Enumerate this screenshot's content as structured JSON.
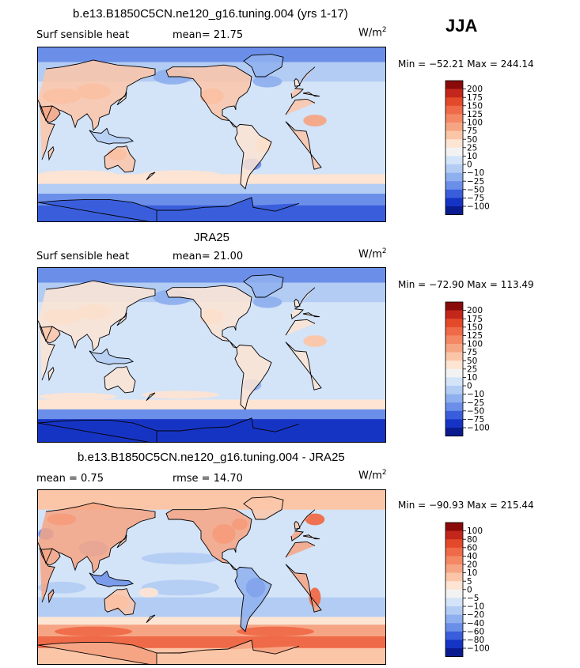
{
  "season": "JJA",
  "chart_data": [
    {
      "type": "heatmap",
      "title": "b.e13.B1850C5CN.ne120_g16.tuning.004 (yrs 1-17)",
      "left_label": "Surf sensible heat",
      "center_label": "mean=  21.75",
      "units": "W/m",
      "units_sup": "2",
      "minmax": "Min = −52.21 Max = 244.14",
      "stats": {
        "mean": 21.75,
        "min": -52.21,
        "max": 244.14
      },
      "levels": [
        "200",
        "175",
        "150",
        "125",
        "100",
        "75",
        "50",
        "25",
        "10",
        "0",
        "−10",
        "−25",
        "−50",
        "−75",
        "−100"
      ],
      "colors": [
        "#8a0a0a",
        "#c3261a",
        "#e24a2a",
        "#ef6a48",
        "#f48864",
        "#f6a584",
        "#fbc6a8",
        "#fde4d3",
        "#f2f2f2",
        "#d3e3f8",
        "#b3ccf3",
        "#8fb0ee",
        "#6b8fe9",
        "#3a5edb",
        "#1634c4",
        "#0a1b8f"
      ]
    },
    {
      "type": "heatmap",
      "title": "JRA25",
      "left_label": "Surf sensible heat",
      "center_label": "mean=  21.00",
      "units": "W/m",
      "units_sup": "2",
      "minmax": "Min = −72.90 Max = 113.49",
      "stats": {
        "mean": 21.0,
        "min": -72.9,
        "max": 113.49
      },
      "levels": [
        "200",
        "175",
        "150",
        "125",
        "100",
        "75",
        "50",
        "25",
        "10",
        "0",
        "−10",
        "−25",
        "−50",
        "−75",
        "−100"
      ],
      "colors": [
        "#8a0a0a",
        "#c3261a",
        "#e24a2a",
        "#ef6a48",
        "#f48864",
        "#f6a584",
        "#fbc6a8",
        "#fde4d3",
        "#f2f2f2",
        "#d3e3f8",
        "#b3ccf3",
        "#8fb0ee",
        "#6b8fe9",
        "#3a5edb",
        "#1634c4",
        "#0a1b8f"
      ]
    },
    {
      "type": "heatmap",
      "title": "b.e13.B1850C5CN.ne120_g16.tuning.004 - JRA25",
      "left_label": "mean =    0.75",
      "center_label": "rmse =   14.70",
      "units": "W/m",
      "units_sup": "2",
      "minmax": "Min = −90.93 Max = 215.44",
      "stats": {
        "mean": 0.75,
        "rmse": 14.7,
        "min": -90.93,
        "max": 215.44
      },
      "levels": [
        "100",
        "80",
        "60",
        "40",
        "20",
        "10",
        "5",
        "0",
        "−5",
        "−10",
        "−20",
        "−40",
        "−60",
        "−80",
        "−100"
      ],
      "colors": [
        "#8a0a0a",
        "#c3261a",
        "#e24a2a",
        "#ef6a48",
        "#f48864",
        "#f6a584",
        "#fbc6a8",
        "#fde4d3",
        "#f2f2f2",
        "#d3e3f8",
        "#b3ccf3",
        "#8fb0ee",
        "#6b8fe9",
        "#3a5edb",
        "#1634c4",
        "#0a1b8f"
      ]
    }
  ]
}
